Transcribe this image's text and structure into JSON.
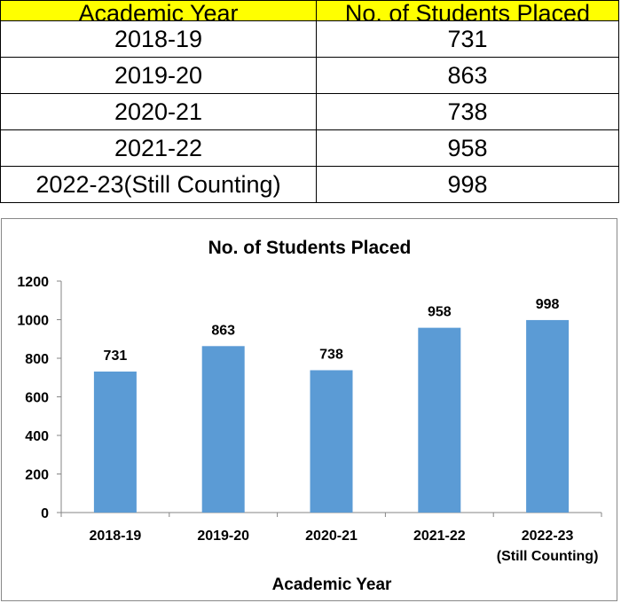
{
  "table": {
    "headers": [
      "Academic Year",
      "No. of Students Placed"
    ],
    "rows": [
      {
        "year": "2018-19",
        "placed": "731"
      },
      {
        "year": "2019-20",
        "placed": "863"
      },
      {
        "year": "2020-21",
        "placed": "738"
      },
      {
        "year": "2021-22",
        "placed": "958"
      },
      {
        "year": "2022-23(Still Counting)",
        "placed": "998"
      }
    ]
  },
  "colors": {
    "header_bg": "#ffff00",
    "bar": "#5b9bd5"
  },
  "chart_data": {
    "type": "bar",
    "title": "No. of Students Placed",
    "xlabel": "Academic Year",
    "ylabel": "",
    "categories": [
      [
        "2018-19"
      ],
      [
        "2019-20"
      ],
      [
        "2020-21"
      ],
      [
        "2021-22"
      ],
      [
        "2022-23",
        "(Still Counting)"
      ]
    ],
    "values": [
      731,
      863,
      738,
      958,
      998
    ],
    "ylim": [
      0,
      1200
    ],
    "yticks": [
      0,
      200,
      400,
      600,
      800,
      1000,
      1200
    ],
    "grid": false,
    "legend": "none",
    "data_labels": true
  }
}
